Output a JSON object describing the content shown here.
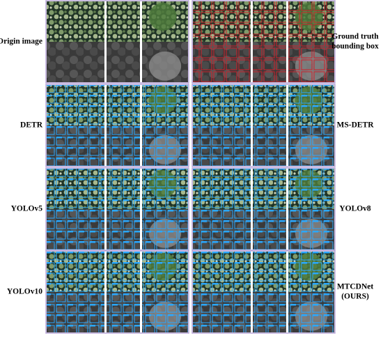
{
  "rows": [
    {
      "left_label": [
        "Origin image"
      ],
      "right_label": [
        "Ground truth",
        "bounding box"
      ]
    },
    {
      "left_label": [
        "DETR"
      ],
      "right_label": [
        "MS-DETR"
      ]
    },
    {
      "left_label": [
        "YOLOv5"
      ],
      "right_label": [
        "YOLOv8"
      ]
    },
    {
      "left_label": [
        "YOLOv10"
      ],
      "right_label": [
        "MTCDNet",
        "(OURS)"
      ]
    }
  ]
}
